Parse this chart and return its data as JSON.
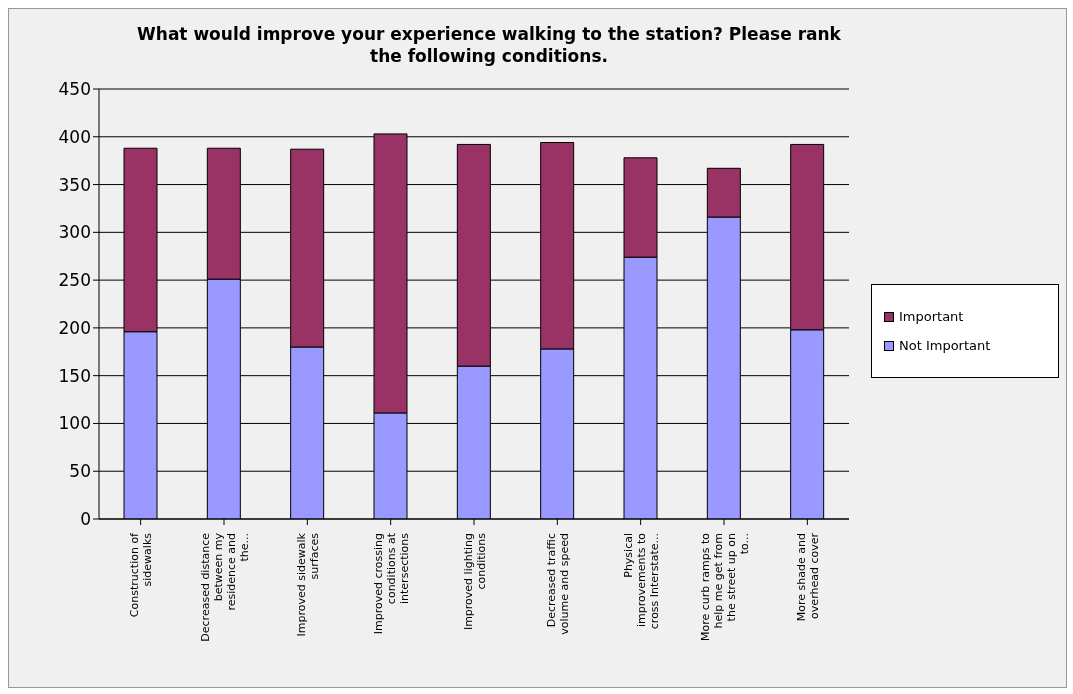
{
  "chart_data": {
    "type": "bar",
    "title": "What would improve your experience walking to the station? Please rank the following conditions.",
    "categories": [
      "Construction of sidewalks",
      "Decreased distance between my residence and the...",
      "Improved sidewalk surfaces",
      "Improved crossing conditions at intersections",
      "Improved lighting conditions",
      "Decreased traffic volume and speed",
      "Physical improvements to cross Interstate...",
      "More curb ramps to help me get from the street up on to...",
      "More shade and overhead cover"
    ],
    "stacked": true,
    "series": [
      {
        "name": "Not Important",
        "color": "#9999ff",
        "values": [
          196,
          251,
          180,
          111,
          160,
          178,
          274,
          316,
          198
        ]
      },
      {
        "name": "Important",
        "color": "#993366",
        "values": [
          192,
          137,
          207,
          292,
          232,
          216,
          104,
          51,
          194
        ]
      }
    ],
    "ylim": [
      0,
      450
    ],
    "yticks": [
      0,
      50,
      100,
      150,
      200,
      250,
      300,
      350,
      400,
      450
    ],
    "grid": "y",
    "legend": "right"
  }
}
